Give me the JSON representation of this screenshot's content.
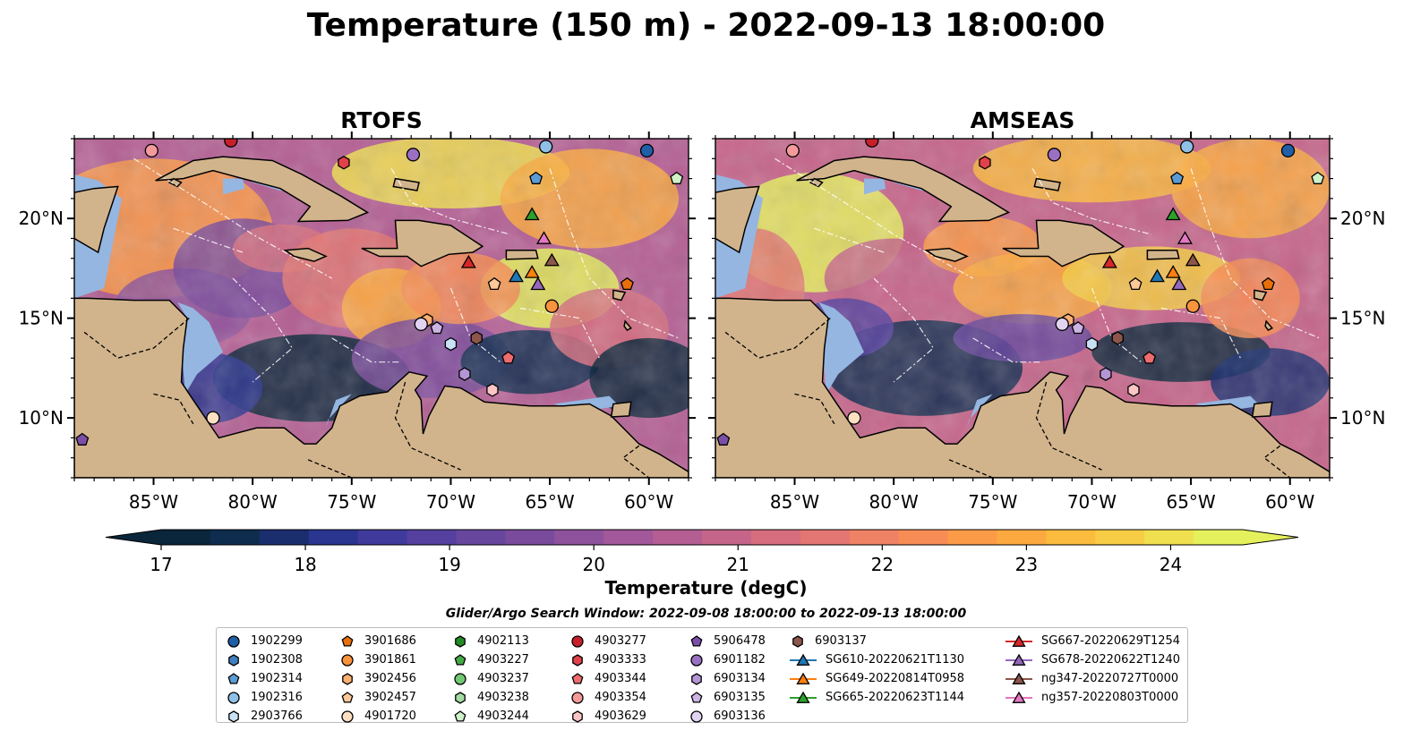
{
  "title": "Temperature (150 m) - 2022-09-13 18:00:00",
  "panels": [
    {
      "title": "RTOFS"
    },
    {
      "title": "AMSEAS"
    }
  ],
  "map": {
    "lon_range": [
      -89,
      -58
    ],
    "lat_range": [
      7,
      24
    ],
    "lon_ticks": [
      "85°W",
      "80°W",
      "75°W",
      "70°W",
      "65°W",
      "60°W"
    ],
    "lat_ticks": [
      "20°N",
      "15°N",
      "10°N"
    ],
    "colors": {
      "land": "#d2b48c",
      "shelf": "#94b6e1",
      "coast": "#000000"
    }
  },
  "colorbar": {
    "label": "Temperature (degC)",
    "ticks": [
      "17",
      "18",
      "19",
      "20",
      "21",
      "22",
      "23",
      "24"
    ],
    "range": [
      17,
      24.5
    ],
    "colors": [
      "#09263a",
      "#0e2c4d",
      "#1a2e6e",
      "#2a3590",
      "#3f3a9c",
      "#553f9f",
      "#67469e",
      "#7a4b9c",
      "#8e529c",
      "#a2589a",
      "#b45e93",
      "#c6658a",
      "#d66d7e",
      "#e37672",
      "#ef8164",
      "#f78c54",
      "#fb9b48",
      "#fcaa3f",
      "#fbbb3d",
      "#f6cd44",
      "#f0e04f",
      "#e5f15c"
    ],
    "extend": "both"
  },
  "legend": {
    "title": "Glider/Argo Search Window: 2022-09-08 18:00:00 to 2022-09-13 18:00:00",
    "columns": [
      [
        {
          "label": "1902299",
          "marker": "circle",
          "color": "#1f5fa8"
        },
        {
          "label": "1902308",
          "marker": "hexagon",
          "color": "#3f7fc0"
        },
        {
          "label": "1902314",
          "marker": "pentagon",
          "color": "#5b9bd5"
        },
        {
          "label": "1902316",
          "marker": "circle",
          "color": "#8fc0e6"
        },
        {
          "label": "2903766",
          "marker": "hexagon",
          "color": "#c9e1f4"
        }
      ],
      [
        {
          "label": "3901686",
          "marker": "pentagon",
          "color": "#e8700a"
        },
        {
          "label": "3901861",
          "marker": "circle",
          "color": "#f9933d"
        },
        {
          "label": "3902456",
          "marker": "hexagon",
          "color": "#fbb071"
        },
        {
          "label": "3902457",
          "marker": "pentagon",
          "color": "#fcc898"
        },
        {
          "label": "4901720",
          "marker": "circle",
          "color": "#fde0c2"
        }
      ],
      [
        {
          "label": "4902113",
          "marker": "hexagon",
          "color": "#238b23"
        },
        {
          "label": "4903227",
          "marker": "pentagon",
          "color": "#45aa45"
        },
        {
          "label": "4903237",
          "marker": "circle",
          "color": "#72c872"
        },
        {
          "label": "4903238",
          "marker": "hexagon",
          "color": "#a2dca2"
        },
        {
          "label": "4903244",
          "marker": "pentagon",
          "color": "#cff0c8"
        }
      ],
      [
        {
          "label": "4903277",
          "marker": "circle",
          "color": "#c8202a"
        },
        {
          "label": "4903333",
          "marker": "hexagon",
          "color": "#e0414a"
        },
        {
          "label": "4903344",
          "marker": "pentagon",
          "color": "#ee6b6e"
        },
        {
          "label": "4903354",
          "marker": "circle",
          "color": "#f59a9a"
        },
        {
          "label": "4903629",
          "marker": "hexagon",
          "color": "#fcc6c4"
        }
      ],
      [
        {
          "label": "5906478",
          "marker": "pentagon",
          "color": "#7b4ea8"
        },
        {
          "label": "6901182",
          "marker": "circle",
          "color": "#9a70c3"
        },
        {
          "label": "6903134",
          "marker": "hexagon",
          "color": "#b595d6"
        },
        {
          "label": "6903135",
          "marker": "pentagon",
          "color": "#ccb5e4"
        },
        {
          "label": "6903136",
          "marker": "circle",
          "color": "#e2d3f1"
        }
      ],
      [
        {
          "label": "6903137",
          "marker": "hexagon",
          "color": "#8c564b"
        },
        {
          "label": "SG610-20220621T1130",
          "marker": "triangle-line",
          "color": "#1f77b4"
        },
        {
          "label": "SG649-20220814T0958",
          "marker": "triangle-line",
          "color": "#ff7f0e"
        },
        {
          "label": "SG665-20220623T1144",
          "marker": "triangle-line",
          "color": "#2ca02c"
        }
      ],
      [
        {
          "label": "SG667-20220629T1254",
          "marker": "triangle-line",
          "color": "#d62728"
        },
        {
          "label": "SG678-20220622T1240",
          "marker": "triangle-line",
          "color": "#9467bd"
        },
        {
          "label": "ng347-20220727T0000",
          "marker": "triangle-line",
          "color": "#8c564b"
        },
        {
          "label": "ng357-20220803T0000",
          "marker": "triangle-line",
          "color": "#e377c2"
        }
      ]
    ]
  },
  "platforms": [
    {
      "id": "1902299",
      "lon": -60.1,
      "lat": 23.4
    },
    {
      "id": "1902314",
      "lon": -65.7,
      "lat": 22.0
    },
    {
      "id": "1902316",
      "lon": -65.2,
      "lat": 23.6
    },
    {
      "id": "2903766",
      "lon": -70.0,
      "lat": 13.7
    },
    {
      "id": "3901686",
      "lon": -61.1,
      "lat": 16.7
    },
    {
      "id": "3901861",
      "lon": -64.9,
      "lat": 15.6
    },
    {
      "id": "3902456",
      "lon": -71.2,
      "lat": 14.9
    },
    {
      "id": "3902457",
      "lon": -67.8,
      "lat": 16.7
    },
    {
      "id": "4901720",
      "lon": -82.0,
      "lat": 10.0
    },
    {
      "id": "4903244",
      "lon": -58.6,
      "lat": 22.0
    },
    {
      "id": "4903277",
      "lon": -81.1,
      "lat": 23.9
    },
    {
      "id": "4903333",
      "lon": -75.4,
      "lat": 22.8
    },
    {
      "id": "4903344",
      "lon": -67.1,
      "lat": 13.0
    },
    {
      "id": "4903354",
      "lon": -85.1,
      "lat": 23.4
    },
    {
      "id": "4903629",
      "lon": -67.9,
      "lat": 11.4
    },
    {
      "id": "5906478",
      "lon": -88.6,
      "lat": 8.9
    },
    {
      "id": "6901182",
      "lon": -71.9,
      "lat": 23.2
    },
    {
      "id": "6903134",
      "lon": -69.3,
      "lat": 12.2
    },
    {
      "id": "6903135",
      "lon": -70.7,
      "lat": 14.5
    },
    {
      "id": "6903136",
      "lon": -71.5,
      "lat": 14.7
    },
    {
      "id": "6903137",
      "lon": -68.7,
      "lat": 14.0
    },
    {
      "id": "SG610-20220621T1130",
      "lon": -66.7,
      "lat": 17.1
    },
    {
      "id": "SG649-20220814T0958",
      "lon": -65.9,
      "lat": 17.3
    },
    {
      "id": "SG665-20220623T1144",
      "lon": -65.9,
      "lat": 20.2
    },
    {
      "id": "SG667-20220629T1254",
      "lon": -69.1,
      "lat": 17.8
    },
    {
      "id": "SG678-20220622T1240",
      "lon": -65.6,
      "lat": 16.7
    },
    {
      "id": "ng347-20220727T0000",
      "lon": -64.9,
      "lat": 17.9
    },
    {
      "id": "ng357-20220803T0000",
      "lon": -65.3,
      "lat": 19.0
    }
  ]
}
